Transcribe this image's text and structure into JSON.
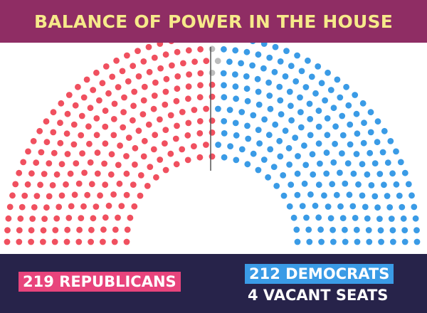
{
  "header": {
    "title": "BALANCE OF POWER IN THE HOUSE"
  },
  "colors": {
    "republican": "#f0505f",
    "democrat": "#3a9be6",
    "vacant": "#bdbdbd",
    "header_bg": "#8f2d64",
    "title_text": "#f6e98a",
    "footer_bg": "#27234a",
    "republican_badge": "#e8447c",
    "democrat_badge": "#3a9be6",
    "divider": "#555555"
  },
  "legend": {
    "republicans": "219 REPUBLICANS",
    "democrats": "212 DEMOCRATS",
    "vacant": "4 VACANT SEATS"
  },
  "chart_data": {
    "type": "parliament",
    "title": "BALANCE OF POWER IN THE HOUSE",
    "total_seats": 435,
    "series": [
      {
        "name": "REPUBLICANS",
        "value": 219
      },
      {
        "name": "DEMOCRATS",
        "value": 212
      },
      {
        "name": "VACANT SEATS",
        "value": 4
      }
    ]
  }
}
